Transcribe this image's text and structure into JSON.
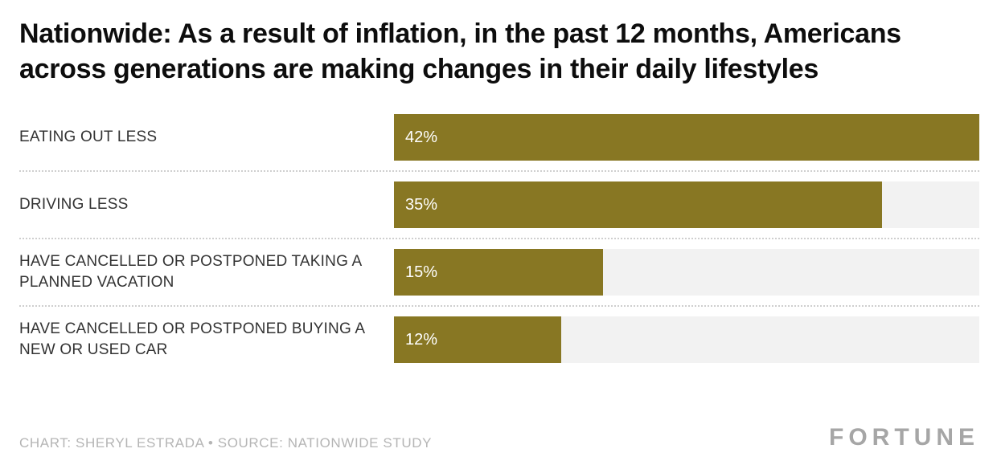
{
  "title": "Nationwide: As a result of inflation, in the past 12 months, Americans across generations are making changes in their daily lifestyles",
  "chart_data": {
    "type": "bar",
    "orientation": "horizontal",
    "title": "Nationwide: As a result of inflation, in the past 12 months, Americans across generations are making changes in their daily lifestyles",
    "categories": [
      "EATING OUT LESS",
      "DRIVING LESS",
      "HAVE CANCELLED OR POSTPONED TAKING A PLANNED VACATION",
      "HAVE CANCELLED OR POSTPONED BUYING A NEW OR USED CAR"
    ],
    "values": [
      42,
      35,
      15,
      12
    ],
    "value_labels": [
      "42%",
      "35%",
      "15%",
      "12%"
    ],
    "xlabel": "",
    "ylabel": "",
    "xlim": [
      0,
      42
    ],
    "grid": false,
    "legend": false,
    "bar_color": "#887723",
    "track_color": "#f2f2f2",
    "separator_style": "dotted"
  },
  "footer": {
    "credit": "CHART: SHERYL ESTRADA • SOURCE: NATIONWIDE STUDY",
    "logo": "FORTUNE"
  }
}
